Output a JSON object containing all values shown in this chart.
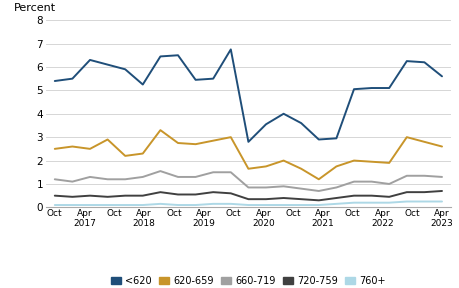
{
  "ylabel": "Percent",
  "ylim": [
    0,
    8
  ],
  "yticks": [
    0,
    1,
    2,
    3,
    4,
    5,
    6,
    7,
    8
  ],
  "series": {
    "<620": {
      "color": "#1f4e79",
      "linewidth": 1.4,
      "values": [
        5.4,
        5.5,
        6.3,
        6.1,
        5.9,
        5.25,
        6.45,
        6.5,
        5.45,
        5.5,
        6.75,
        2.8,
        3.55,
        4.0,
        3.6,
        2.9,
        2.95,
        5.05,
        5.1,
        5.1,
        6.25,
        6.2,
        5.6
      ]
    },
    "620-659": {
      "color": "#c8952a",
      "linewidth": 1.4,
      "values": [
        2.5,
        2.6,
        2.5,
        2.9,
        2.2,
        2.3,
        3.3,
        2.75,
        2.7,
        2.85,
        3.0,
        1.65,
        1.75,
        2.0,
        1.65,
        1.2,
        1.75,
        2.0,
        1.95,
        1.9,
        3.0,
        2.8,
        2.6
      ]
    },
    "660-719": {
      "color": "#a0a0a0",
      "linewidth": 1.4,
      "values": [
        1.2,
        1.1,
        1.3,
        1.2,
        1.2,
        1.3,
        1.55,
        1.3,
        1.3,
        1.5,
        1.5,
        0.85,
        0.85,
        0.9,
        0.8,
        0.7,
        0.85,
        1.1,
        1.1,
        1.0,
        1.35,
        1.35,
        1.3
      ]
    },
    "720-759": {
      "color": "#404040",
      "linewidth": 1.4,
      "values": [
        0.5,
        0.45,
        0.5,
        0.45,
        0.5,
        0.5,
        0.65,
        0.55,
        0.55,
        0.65,
        0.6,
        0.35,
        0.35,
        0.4,
        0.35,
        0.3,
        0.4,
        0.5,
        0.5,
        0.45,
        0.65,
        0.65,
        0.7
      ]
    },
    "760+": {
      "color": "#add8e6",
      "linewidth": 1.4,
      "values": [
        0.1,
        0.1,
        0.1,
        0.1,
        0.1,
        0.1,
        0.15,
        0.1,
        0.1,
        0.15,
        0.15,
        0.1,
        0.1,
        0.1,
        0.1,
        0.1,
        0.15,
        0.2,
        0.2,
        0.2,
        0.25,
        0.25,
        0.25
      ]
    }
  },
  "x_labels": [
    "Oct",
    "Apr\n2017",
    "Oct",
    "Apr\n2018",
    "Oct",
    "Apr\n2019",
    "Oct",
    "Apr\n2020",
    "Oct",
    "Apr\n2021",
    "Oct",
    "Apr\n2022",
    "Oct",
    "Apr\n2023"
  ],
  "n_points": 23,
  "background_color": "#ffffff",
  "grid_color": "#d0d0d0"
}
